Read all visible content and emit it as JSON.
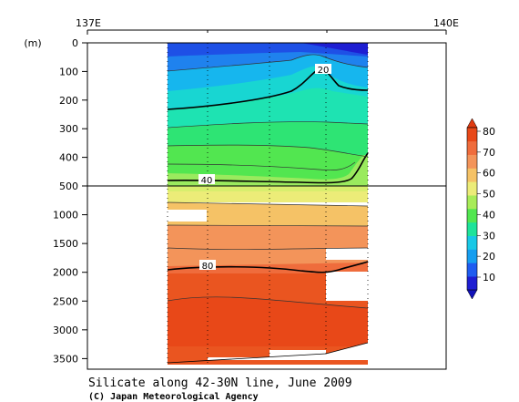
{
  "title": "Silicate along 42-30N line, June 2009",
  "credit": "(C) Japan Meteorological Agency",
  "chart_data": {
    "type": "heatmap",
    "x_axis": {
      "ticks": [
        "137E",
        "140E"
      ]
    },
    "y_axis": {
      "unit_label": "(m)",
      "upper_ticks": [
        0,
        100,
        200,
        300,
        400,
        500
      ],
      "lower_ticks": [
        1000,
        1500,
        2000,
        2500,
        3000,
        3500
      ]
    },
    "colorbar": {
      "levels": [
        10,
        20,
        30,
        40,
        50,
        60,
        70,
        80
      ],
      "colors": [
        "#1e1ed2",
        "#1f5cf0",
        "#169ef0",
        "#18c8e6",
        "#1ee39a",
        "#52e650",
        "#a8ec58",
        "#ecec78",
        "#f5c266",
        "#f3945a",
        "#ef6c3c",
        "#e84818"
      ]
    },
    "contour_labels": [
      "20",
      "40",
      "80"
    ]
  }
}
